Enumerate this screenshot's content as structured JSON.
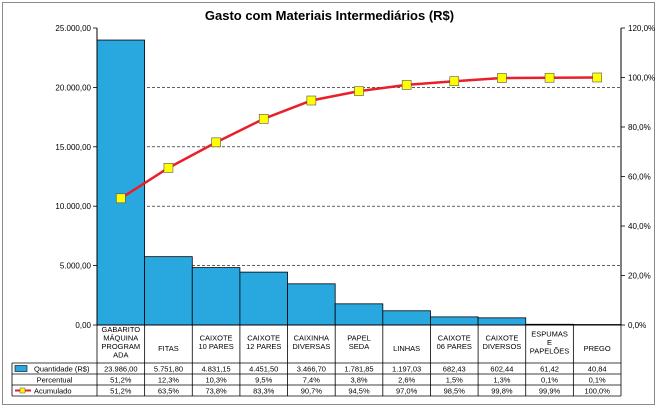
{
  "chart_data": {
    "type": "bar",
    "title": "Gasto com Materiais Intermediários (R$)",
    "categories": [
      [
        "GABARITO",
        "MÁQUINA",
        "PROGRAM",
        "ADA"
      ],
      [
        "FITAS"
      ],
      [
        "CAIXOTE",
        "10 PARES"
      ],
      [
        "CAIXOTE",
        "12 PARES"
      ],
      [
        "CAIXINHA",
        "DIVERSAS"
      ],
      [
        "PAPEL",
        "SEDA"
      ],
      [
        "LINHAS"
      ],
      [
        "CAIXOTE",
        "06 PARES"
      ],
      [
        "CAIXOTE",
        "DIVERSOS"
      ],
      [
        "ESPUMAS",
        "E",
        "PAPELÕES"
      ],
      [
        "PREGO"
      ]
    ],
    "left_axis": {
      "ylim": [
        0,
        25000
      ],
      "ticks": [
        "0,00",
        "5.000,00",
        "10.000,00",
        "15.000,00",
        "20.000,00",
        "25.000,00"
      ]
    },
    "right_axis": {
      "ylim": [
        0,
        120
      ],
      "ticks": [
        "0,0%",
        "20,0%",
        "40,0%",
        "60,0%",
        "80,0%",
        "100,0%",
        "120,0%"
      ]
    },
    "grid": "dashed horizontal at left-axis ticks",
    "series": [
      {
        "name": "Quantidade (R$)",
        "kind": "bar",
        "axis": "left",
        "color": "#29a8e0",
        "values": [
          23986.0,
          5751.8,
          4831.15,
          4451.5,
          3466.7,
          1781.85,
          1197.03,
          682.43,
          602.44,
          61.42,
          40.84
        ],
        "labels": [
          "23.986,00",
          "5.751,80",
          "4.831,15",
          "4.451,50",
          "3.466,70",
          "1.781,85",
          "1.197,03",
          "682,43",
          "602,44",
          "61,42",
          "40,84"
        ]
      },
      {
        "name": "Percentual",
        "kind": "table-only",
        "values": [
          51.2,
          12.3,
          10.3,
          9.5,
          7.4,
          3.8,
          2.6,
          1.5,
          1.3,
          0.1,
          0.1
        ],
        "labels": [
          "51,2%",
          "12,3%",
          "10,3%",
          "9,5%",
          "7,4%",
          "3,8%",
          "2,6%",
          "1,5%",
          "1,3%",
          "0,1%",
          "0,1%"
        ]
      },
      {
        "name": "Acumulado",
        "kind": "line",
        "axis": "right",
        "color": "#e8202a",
        "marker_color": "#ffff00",
        "values": [
          51.2,
          63.5,
          73.8,
          83.3,
          90.7,
          94.5,
          97.0,
          98.5,
          99.8,
          99.9,
          100.0
        ],
        "labels": [
          "51,2%",
          "63,5%",
          "73,8%",
          "83,3%",
          "90,7%",
          "94,5%",
          "97,0%",
          "98,5%",
          "99,8%",
          "99,9%",
          "100,0%"
        ]
      }
    ]
  }
}
